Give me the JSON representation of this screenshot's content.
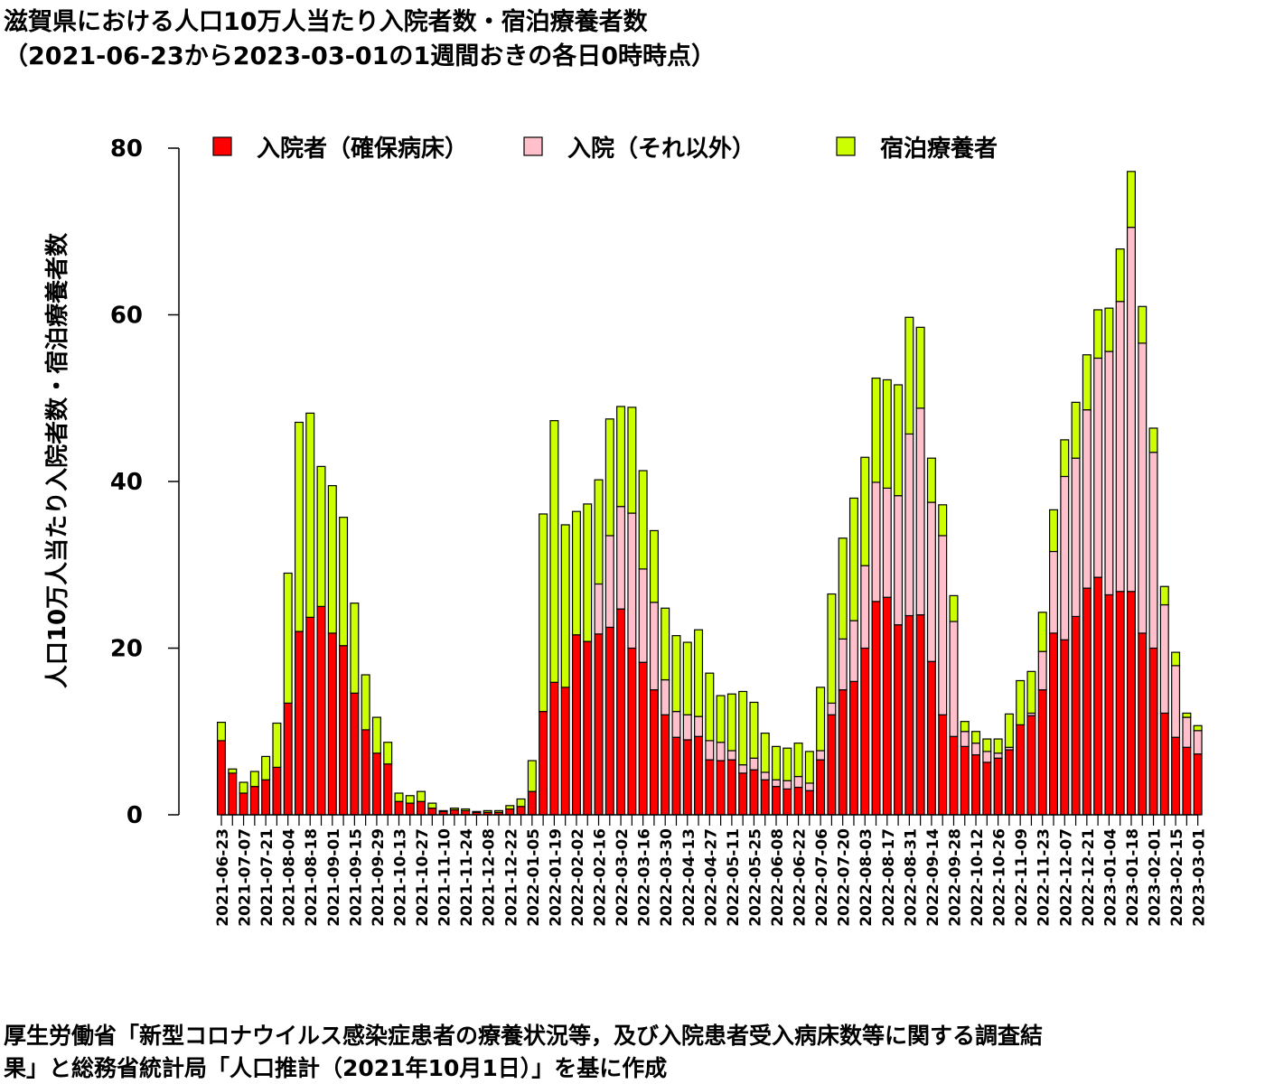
{
  "title": {
    "line1": "滋賀県における人口10万人当たり入院者数・宿泊療養者数",
    "line2": "（2021-06-23から2023-03-01の1週間おきの各日0時時点）"
  },
  "source": {
    "line1": "厚生労働省「新型コロナウイルス感染症患者の療養状況等，及び入院患者受入病床数等に関する調査結",
    "line2": "果」と総務省統計局「人口推計（2021年10月1日）」を基に作成"
  },
  "chart_data": {
    "type": "bar",
    "stacked": true,
    "ylabel": "人口10万人当たり入院者数・宿泊療養者数",
    "xlabel": "",
    "ylim": [
      0,
      80
    ],
    "yticks": [
      0,
      20,
      40,
      60,
      80
    ],
    "legend_position": "top",
    "categories": [
      "2021-06-23",
      "2021-06-30",
      "2021-07-07",
      "2021-07-14",
      "2021-07-21",
      "2021-07-28",
      "2021-08-04",
      "2021-08-11",
      "2021-08-18",
      "2021-08-25",
      "2021-09-01",
      "2021-09-08",
      "2021-09-15",
      "2021-09-22",
      "2021-09-29",
      "2021-10-06",
      "2021-10-13",
      "2021-10-20",
      "2021-10-27",
      "2021-11-03",
      "2021-11-10",
      "2021-11-17",
      "2021-11-24",
      "2021-12-01",
      "2021-12-08",
      "2021-12-15",
      "2021-12-22",
      "2021-12-29",
      "2022-01-05",
      "2022-01-12",
      "2022-01-19",
      "2022-01-26",
      "2022-02-02",
      "2022-02-09",
      "2022-02-16",
      "2022-02-23",
      "2022-03-02",
      "2022-03-09",
      "2022-03-16",
      "2022-03-23",
      "2022-03-30",
      "2022-04-06",
      "2022-04-13",
      "2022-04-20",
      "2022-04-27",
      "2022-05-04",
      "2022-05-11",
      "2022-05-18",
      "2022-05-25",
      "2022-06-01",
      "2022-06-08",
      "2022-06-15",
      "2022-06-22",
      "2022-06-29",
      "2022-07-06",
      "2022-07-13",
      "2022-07-20",
      "2022-07-27",
      "2022-08-03",
      "2022-08-10",
      "2022-08-17",
      "2022-08-24",
      "2022-08-31",
      "2022-09-07",
      "2022-09-14",
      "2022-09-21",
      "2022-09-28",
      "2022-10-05",
      "2022-10-12",
      "2022-10-19",
      "2022-10-26",
      "2022-11-02",
      "2022-11-09",
      "2022-11-16",
      "2022-11-23",
      "2022-11-30",
      "2022-12-07",
      "2022-12-14",
      "2022-12-21",
      "2022-12-28",
      "2023-01-04",
      "2023-01-11",
      "2023-01-18",
      "2023-01-25",
      "2023-02-01",
      "2023-02-08",
      "2023-02-15",
      "2023-02-22",
      "2023-03-01"
    ],
    "series": [
      {
        "name": "入院者（確保病床）",
        "color": "#ff0000",
        "values": [
          8.9,
          5.0,
          2.6,
          3.4,
          4.2,
          5.7,
          13.4,
          22.0,
          23.7,
          25.0,
          21.8,
          20.3,
          14.6,
          10.2,
          7.4,
          6.1,
          1.6,
          1.4,
          1.6,
          0.8,
          0.4,
          0.6,
          0.5,
          0.3,
          0.3,
          0.3,
          0.7,
          1.0,
          2.8,
          12.4,
          15.9,
          15.3,
          21.6,
          20.8,
          21.7,
          22.5,
          24.7,
          20.0,
          18.3,
          15.0,
          12.0,
          9.3,
          9.0,
          9.4,
          6.6,
          6.5,
          6.6,
          5.0,
          5.4,
          4.2,
          3.4,
          3.1,
          3.3,
          2.9,
          6.6,
          12.0,
          15.0,
          16.0,
          20.0,
          25.6,
          26.1,
          22.8,
          23.9,
          24.0,
          18.4,
          12.0,
          9.4,
          8.2,
          7.2,
          6.3,
          6.8,
          7.8,
          10.8,
          11.9,
          15.0,
          21.8,
          21.0,
          23.8,
          27.2,
          28.5,
          26.4,
          26.8,
          26.8,
          21.8,
          20.0,
          12.2,
          9.3,
          8.1,
          7.3
        ]
      },
      {
        "name": "入院（それ以外）",
        "color": "#ffc0cb",
        "values": [
          0.0,
          0.0,
          0.0,
          0.0,
          0.0,
          0.0,
          0.0,
          0.0,
          0.0,
          0.0,
          0.0,
          0.0,
          0.0,
          0.0,
          0.0,
          0.0,
          0.0,
          0.0,
          0.0,
          0.0,
          0.0,
          0.0,
          0.0,
          0.0,
          0.0,
          0.0,
          0.0,
          0.0,
          0.0,
          0.0,
          0.0,
          0.0,
          0.0,
          0.0,
          6.0,
          11.0,
          12.3,
          16.2,
          11.2,
          10.5,
          4.2,
          3.1,
          3.0,
          2.4,
          2.3,
          2.2,
          1.1,
          1.0,
          1.4,
          0.9,
          0.8,
          1.0,
          1.3,
          0.9,
          1.1,
          1.4,
          6.1,
          7.3,
          9.9,
          14.3,
          13.1,
          15.5,
          21.8,
          24.8,
          19.1,
          21.5,
          13.8,
          1.8,
          1.4,
          1.3,
          0.6,
          0.3,
          0.0,
          0.3,
          4.6,
          9.8,
          19.6,
          19.0,
          21.4,
          26.3,
          29.2,
          34.8,
          43.7,
          34.8,
          23.5,
          13.0,
          8.6,
          3.6,
          2.8
        ]
      },
      {
        "name": "宿泊療養者",
        "color": "#ccff00",
        "values": [
          2.2,
          0.5,
          1.3,
          1.8,
          2.8,
          5.3,
          15.6,
          25.1,
          24.5,
          16.8,
          17.7,
          15.4,
          10.8,
          6.6,
          4.3,
          2.6,
          1.0,
          0.9,
          1.2,
          0.6,
          0.1,
          0.2,
          0.2,
          0.1,
          0.2,
          0.2,
          0.4,
          0.9,
          3.7,
          23.7,
          31.4,
          19.5,
          14.8,
          16.5,
          12.5,
          14.0,
          12.0,
          12.7,
          11.8,
          8.6,
          8.6,
          9.1,
          8.7,
          10.4,
          8.1,
          5.6,
          6.8,
          8.8,
          6.7,
          4.7,
          4.0,
          3.9,
          4.0,
          3.8,
          7.6,
          13.1,
          12.1,
          14.7,
          13.0,
          12.5,
          13.0,
          13.3,
          14.0,
          9.7,
          5.3,
          3.7,
          3.1,
          1.2,
          1.4,
          1.5,
          1.7,
          4.0,
          5.3,
          5.0,
          4.7,
          5.0,
          4.4,
          6.7,
          6.6,
          5.8,
          5.2,
          6.3,
          6.7,
          4.4,
          2.9,
          2.2,
          1.6,
          0.5,
          0.6
        ]
      }
    ]
  }
}
